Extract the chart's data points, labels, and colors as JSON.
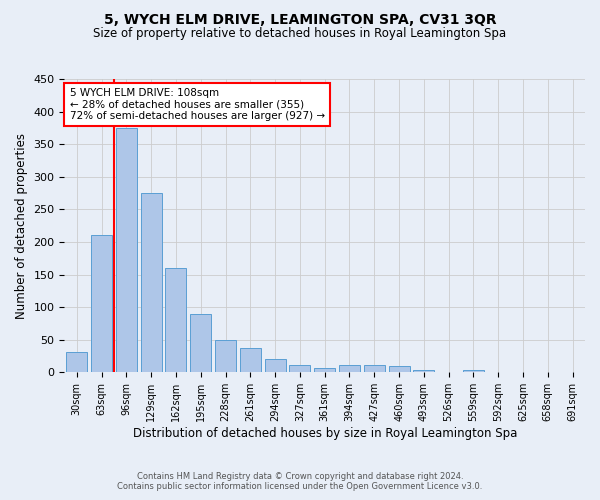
{
  "title": "5, WYCH ELM DRIVE, LEAMINGTON SPA, CV31 3QR",
  "subtitle": "Size of property relative to detached houses in Royal Leamington Spa",
  "xlabel": "Distribution of detached houses by size in Royal Leamington Spa",
  "ylabel": "Number of detached properties",
  "footer1": "Contains HM Land Registry data © Crown copyright and database right 2024.",
  "footer2": "Contains public sector information licensed under the Open Government Licence v3.0.",
  "bar_labels": [
    "30sqm",
    "63sqm",
    "96sqm",
    "129sqm",
    "162sqm",
    "195sqm",
    "228sqm",
    "261sqm",
    "294sqm",
    "327sqm",
    "361sqm",
    "394sqm",
    "427sqm",
    "460sqm",
    "493sqm",
    "526sqm",
    "559sqm",
    "592sqm",
    "625sqm",
    "658sqm",
    "691sqm"
  ],
  "bar_values": [
    31,
    210,
    375,
    275,
    160,
    90,
    50,
    38,
    20,
    11,
    6,
    11,
    11,
    10,
    4,
    0,
    4,
    0,
    1,
    0,
    1
  ],
  "bar_color": "#aec6e8",
  "bar_edge_color": "#5a9fd4",
  "grid_color": "#cccccc",
  "bg_color": "#e8eef7",
  "vline_color": "red",
  "vline_x": 1.5,
  "annotation_line1": "5 WYCH ELM DRIVE: 108sqm",
  "annotation_line2": "← 28% of detached houses are smaller (355)",
  "annotation_line3": "72% of semi-detached houses are larger (927) →",
  "annotation_box_color": "white",
  "annotation_box_edge": "red",
  "ylim": [
    0,
    450
  ],
  "yticks": [
    0,
    50,
    100,
    150,
    200,
    250,
    300,
    350,
    400,
    450
  ]
}
